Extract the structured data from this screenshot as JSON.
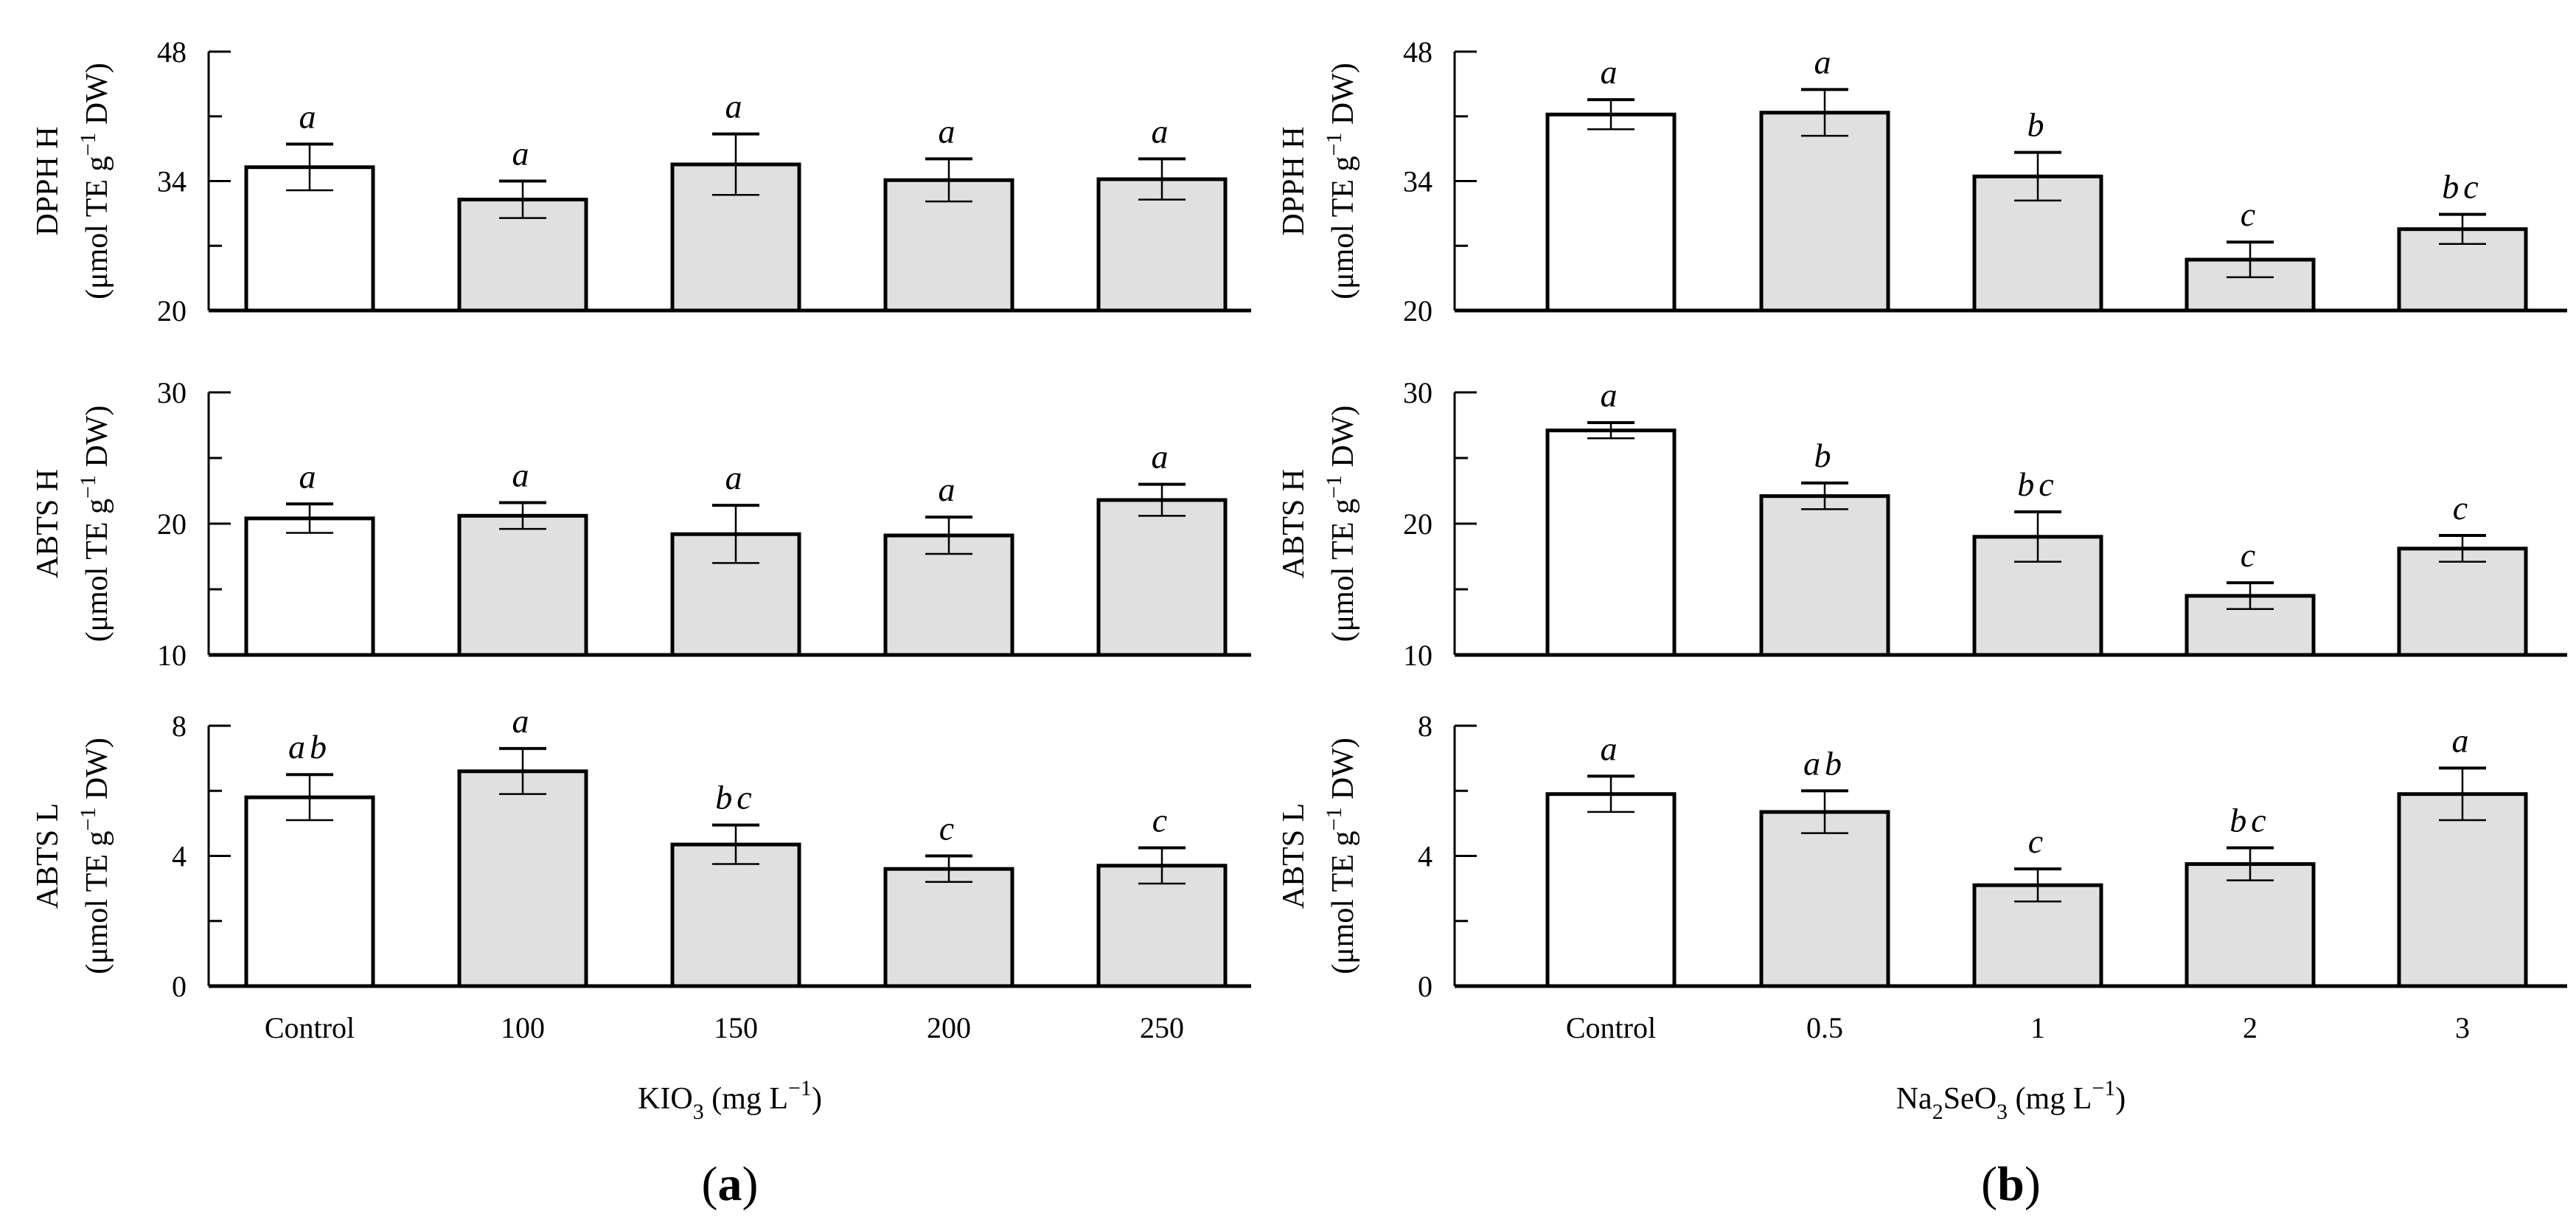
{
  "figure": {
    "panel_labels": [
      {
        "open": "(",
        "letter": "a",
        "close": ")"
      },
      {
        "open": "(",
        "letter": "b",
        "close": ")"
      }
    ]
  },
  "colors": {
    "control_fill": "#ffffff",
    "treatment_fill": "#e0e0e0",
    "stroke": "#000000"
  },
  "chart_data": [
    {
      "type": "bar",
      "panel": "a",
      "x_axis": {
        "categories": [
          "Control",
          "100",
          "150",
          "200",
          "250"
        ],
        "label_main": "KIO",
        "label_sub": "3",
        "label_units": " (mg L",
        "label_sup": "−1",
        "label_close": ")"
      },
      "rows": [
        {
          "ylabel": {
            "prefix": "DPPH H",
            "unit_main": "(μmol TE g",
            "unit_sup": "−1",
            "unit_end": " DW)"
          },
          "ylim": [
            20,
            48
          ],
          "yticks": [
            20,
            34,
            48
          ],
          "minor_step": 7,
          "values": [
            35.5,
            32,
            35.8,
            34.1,
            34.2
          ],
          "errors": [
            2.5,
            2,
            3.3,
            2.3,
            2.2
          ],
          "letters": [
            "a",
            "a",
            "a",
            "a",
            "a"
          ]
        },
        {
          "ylabel": {
            "prefix": "ABTS H",
            "unit_main": "(μmol TE g",
            "unit_sup": "−1",
            "unit_end": " DW)"
          },
          "ylim": [
            10,
            30
          ],
          "yticks": [
            10,
            20,
            30
          ],
          "minor_step": 5,
          "values": [
            20.4,
            20.6,
            19.2,
            19.1,
            21.8
          ],
          "errors": [
            1.1,
            1,
            2.2,
            1.4,
            1.2
          ],
          "letters": [
            "a",
            "a",
            "a",
            "a",
            "a"
          ]
        },
        {
          "ylabel": {
            "prefix": "ABTS L",
            "unit_main": "(μmol TE g",
            "unit_sup": "−1",
            "unit_end": " DW)"
          },
          "ylim": [
            0,
            8
          ],
          "yticks": [
            0,
            4,
            8
          ],
          "minor_step": 2,
          "values": [
            5.8,
            6.6,
            4.35,
            3.6,
            3.7
          ],
          "errors": [
            0.7,
            0.7,
            0.6,
            0.4,
            0.55
          ],
          "letters": [
            "ab",
            "a",
            "bc",
            "c",
            "c"
          ]
        }
      ]
    },
    {
      "type": "bar",
      "panel": "b",
      "x_axis": {
        "categories": [
          "Control",
          "0.5",
          "1",
          "2",
          "3"
        ],
        "label_main": "Na",
        "label_sub": "2",
        "label_mid": "SeO",
        "label_sub2": "3",
        "label_units": " (mg L",
        "label_sup": "−1",
        "label_close": ")"
      },
      "rows": [
        {
          "ylabel": {
            "prefix": "DPPH H",
            "unit_main": "(μmol TE g",
            "unit_sup": "−1",
            "unit_end": " DW)"
          },
          "ylim": [
            20,
            48
          ],
          "yticks": [
            20,
            34,
            48
          ],
          "minor_step": 7,
          "values": [
            41.2,
            41.4,
            34.5,
            25.5,
            28.8
          ],
          "errors": [
            1.6,
            2.5,
            2.6,
            1.9,
            1.6
          ],
          "letters": [
            "a",
            "a",
            "b",
            "c",
            "bc"
          ]
        },
        {
          "ylabel": {
            "prefix": "ABTS H",
            "unit_main": "(μmol TE g",
            "unit_sup": "−1",
            "unit_end": " DW)"
          },
          "ylim": [
            10,
            30
          ],
          "yticks": [
            10,
            20,
            30
          ],
          "minor_step": 5,
          "values": [
            27.1,
            22.1,
            19.0,
            14.5,
            18.1
          ],
          "errors": [
            0.6,
            1.0,
            1.9,
            1.0,
            1.0
          ],
          "letters": [
            "a",
            "b",
            "bc",
            "c",
            "c"
          ]
        },
        {
          "ylabel": {
            "prefix": "ABTS L",
            "unit_main": "(μmol TE g",
            "unit_sup": "−1",
            "unit_end": " DW)"
          },
          "ylim": [
            0,
            8
          ],
          "yticks": [
            0,
            4,
            8
          ],
          "minor_step": 2,
          "values": [
            5.9,
            5.35,
            3.1,
            3.75,
            5.9
          ],
          "errors": [
            0.55,
            0.65,
            0.5,
            0.5,
            0.8
          ],
          "letters": [
            "a",
            "ab",
            "c",
            "bc",
            "a"
          ]
        }
      ]
    }
  ]
}
